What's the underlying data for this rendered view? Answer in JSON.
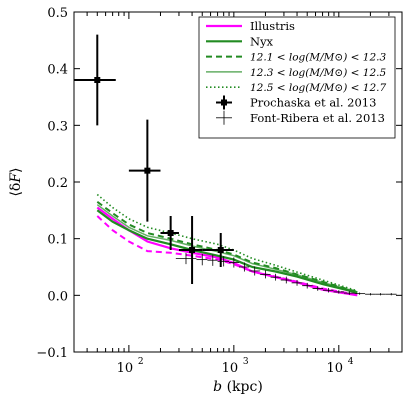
{
  "chart_data": {
    "type": "line",
    "xlabel": "b (kpc)",
    "ylabel": "⟨δF⟩",
    "xscale": "log",
    "xlim": [
      30,
      40000
    ],
    "ylim": [
      -0.1,
      0.5
    ],
    "y_ticks": [
      "−0.1",
      "0.0",
      "0.1",
      "0.2",
      "0.3",
      "0.4",
      "0.5"
    ],
    "x_ticks": [
      {
        "value": 100,
        "label": "10",
        "exp": "2"
      },
      {
        "value": 1000,
        "label": "10",
        "exp": "3"
      },
      {
        "value": 10000,
        "label": "10",
        "exp": "4"
      }
    ],
    "legend_position": "top-right",
    "series": [
      {
        "name": "Illustris",
        "style": "solid",
        "color": "#ff00ff",
        "x": [
          50,
          70,
          100,
          150,
          250,
          400,
          700,
          1000,
          1500,
          2500,
          4000,
          7000,
          15000
        ],
        "y": [
          0.155,
          0.135,
          0.115,
          0.095,
          0.083,
          0.075,
          0.067,
          0.057,
          0.042,
          0.032,
          0.023,
          0.01,
          0.0
        ]
      },
      {
        "name": "Nyx",
        "style": "solid",
        "color": "#228b22",
        "x": [
          50,
          70,
          100,
          150,
          250,
          400,
          700,
          1000,
          1500,
          2500,
          4000,
          7000,
          15000
        ],
        "y": [
          0.15,
          0.13,
          0.115,
          0.1,
          0.09,
          0.08,
          0.07,
          0.063,
          0.05,
          0.042,
          0.033,
          0.02,
          0.005
        ]
      },
      {
        "name": "12.1 < log(M/M⊙) < 12.3",
        "style": "dashed",
        "color": "#228b22",
        "x": [
          50,
          70,
          100,
          150,
          250,
          400,
          700,
          1000,
          1500,
          2500,
          4000,
          7000,
          15000
        ],
        "y": [
          0.165,
          0.145,
          0.125,
          0.11,
          0.1,
          0.09,
          0.08,
          0.072,
          0.058,
          0.048,
          0.037,
          0.024,
          0.006
        ]
      },
      {
        "name": "12.3 < log(M/M⊙) < 12.5",
        "style": "solid-light",
        "color": "#228b22",
        "x": [
          50,
          70,
          100,
          150,
          250,
          400,
          700,
          1000,
          1500,
          2500,
          4000,
          7000,
          15000
        ],
        "y": [
          0.16,
          0.14,
          0.12,
          0.105,
          0.097,
          0.087,
          0.077,
          0.07,
          0.056,
          0.046,
          0.036,
          0.023,
          0.006
        ]
      },
      {
        "name": "12.5 < log(M/M⊙) < 12.7",
        "style": "dotted",
        "color": "#228b22",
        "x": [
          50,
          70,
          100,
          150,
          250,
          400,
          700,
          1000,
          1500,
          2500,
          4000,
          7000,
          15000
        ],
        "y": [
          0.178,
          0.155,
          0.135,
          0.12,
          0.11,
          0.1,
          0.09,
          0.08,
          0.065,
          0.053,
          0.041,
          0.027,
          0.008
        ]
      },
      {
        "name": "Illustris dashed",
        "style": "dashed",
        "color": "#ff00ff",
        "in_legend": false,
        "x": [
          50,
          70,
          100,
          150,
          250,
          400,
          700,
          1000,
          1500,
          2500,
          4000,
          7000,
          15000
        ],
        "y": [
          0.14,
          0.115,
          0.095,
          0.078,
          0.075,
          0.07,
          0.063,
          0.055,
          0.042,
          0.033,
          0.024,
          0.012,
          0.001
        ]
      }
    ],
    "points": [
      {
        "name": "Prochaska et al. 2013",
        "marker": "square",
        "data": [
          {
            "x": 50,
            "y": 0.38,
            "xerr": [
              30,
              75
            ],
            "yerr": 0.08
          },
          {
            "x": 150,
            "y": 0.22,
            "xerr": [
              100,
              200
            ],
            "yerr": 0.09
          },
          {
            "x": 250,
            "y": 0.11,
            "xerr": [
              200,
              300
            ],
            "yerr": 0.03
          },
          {
            "x": 400,
            "y": 0.08,
            "xerr": [
              300,
              500
            ],
            "yerr": 0.06
          },
          {
            "x": 750,
            "y": 0.08,
            "xerr": [
              500,
              1000
            ],
            "yerr": 0.03
          }
        ]
      },
      {
        "name": "Font-Ribera et al. 2013",
        "marker": "plus",
        "data": [
          {
            "x": 350,
            "y": 0.065,
            "xerr": [
              280,
              440
            ],
            "yerr": 0.01
          },
          {
            "x": 500,
            "y": 0.063,
            "xerr": [
              440,
              560
            ],
            "yerr": 0.01
          },
          {
            "x": 630,
            "y": 0.062,
            "xerr": [
              560,
              700
            ],
            "yerr": 0.01
          },
          {
            "x": 800,
            "y": 0.06,
            "xerr": [
              700,
              900
            ],
            "yerr": 0.009
          },
          {
            "x": 1000,
            "y": 0.058,
            "xerr": [
              900,
              1120
            ],
            "yerr": 0.009
          },
          {
            "x": 1260,
            "y": 0.05,
            "xerr": [
              1120,
              1400
            ],
            "yerr": 0.008
          },
          {
            "x": 1580,
            "y": 0.043,
            "xerr": [
              1400,
              1780
            ],
            "yerr": 0.008
          },
          {
            "x": 2000,
            "y": 0.037,
            "xerr": [
              1780,
              2240
            ],
            "yerr": 0.007
          },
          {
            "x": 2500,
            "y": 0.032,
            "xerr": [
              2240,
              2800
            ],
            "yerr": 0.006
          },
          {
            "x": 3160,
            "y": 0.027,
            "xerr": [
              2800,
              3550
            ],
            "yerr": 0.006
          },
          {
            "x": 4000,
            "y": 0.022,
            "xerr": [
              3550,
              4470
            ],
            "yerr": 0.005
          },
          {
            "x": 5000,
            "y": 0.017,
            "xerr": [
              4470,
              5620
            ],
            "yerr": 0.005
          },
          {
            "x": 6300,
            "y": 0.012,
            "xerr": [
              5620,
              7080
            ],
            "yerr": 0.004
          },
          {
            "x": 8000,
            "y": 0.009,
            "xerr": [
              7080,
              8900
            ],
            "yerr": 0.004
          },
          {
            "x": 10000,
            "y": 0.006,
            "xerr": [
              8900,
              11200
            ],
            "yerr": 0.003
          },
          {
            "x": 12600,
            "y": 0.004,
            "xerr": [
              11200,
              14100
            ],
            "yerr": 0.003
          },
          {
            "x": 15800,
            "y": 0.003,
            "xerr": [
              14100,
              17800
            ],
            "yerr": 0.002
          },
          {
            "x": 20000,
            "y": 0.002,
            "xerr": [
              17800,
              22400
            ],
            "yerr": 0.002
          },
          {
            "x": 25000,
            "y": 0.002,
            "xerr": [
              22400,
              28000
            ],
            "yerr": 0.002
          },
          {
            "x": 31600,
            "y": 0.002,
            "xerr": [
              28000,
              35500
            ],
            "yerr": 0.002
          }
        ]
      }
    ]
  }
}
